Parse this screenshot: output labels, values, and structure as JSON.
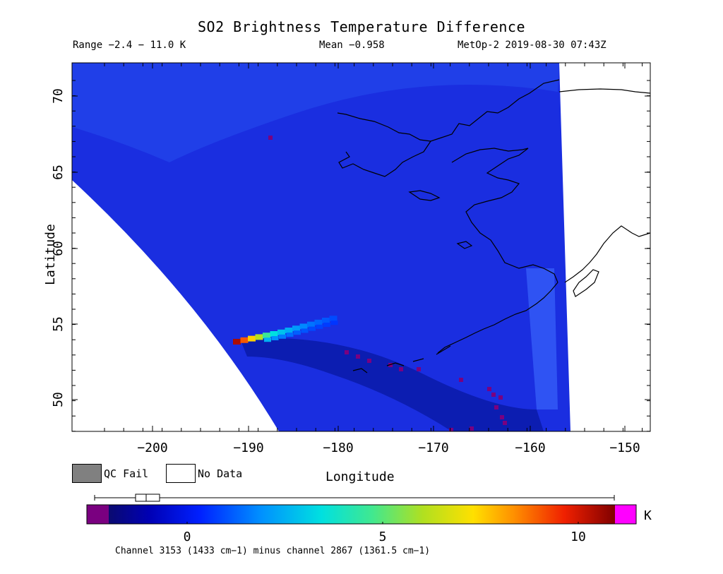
{
  "header": {
    "title": "SO2 Brightness Temperature Difference",
    "range": "Range −2.4 − 11.0 K",
    "mean": "Mean −0.958",
    "satellite_time": "MetOp-2 2019-08-30 07:43Z"
  },
  "axes": {
    "xlabel": "Longitude",
    "ylabel": "Latitude",
    "xticks": [
      "−200",
      "−190",
      "−180",
      "−170",
      "−160",
      "−150"
    ],
    "yticks": [
      "70",
      "65",
      "60",
      "55",
      "50"
    ],
    "xlim": [
      -207,
      -147
    ],
    "ylim": [
      48,
      72
    ]
  },
  "legend": {
    "qc_fail": "QC Fail",
    "no_data": "No Data",
    "qc_fail_color": "#808080",
    "no_data_color": "#ffffff"
  },
  "colorbar": {
    "unit": "K",
    "ticks": [
      "0",
      "5",
      "10"
    ],
    "tick_values": [
      0,
      5,
      10
    ],
    "range": [
      -2.4,
      11.0
    ],
    "below_color": "#7a0080",
    "above_color": "#ff00ff",
    "caption": "Channel 3153 (1433 cm−1) minus channel 2867 (1361.5 cm−1)"
  },
  "map": {
    "background_color": "#1a2ee0",
    "plume_values": [
      10.5,
      9,
      7.5,
      6,
      4.5,
      3.2,
      2.6,
      2.2,
      1.8,
      1.5,
      1.2,
      1.0,
      0.8,
      0.6
    ]
  }
}
